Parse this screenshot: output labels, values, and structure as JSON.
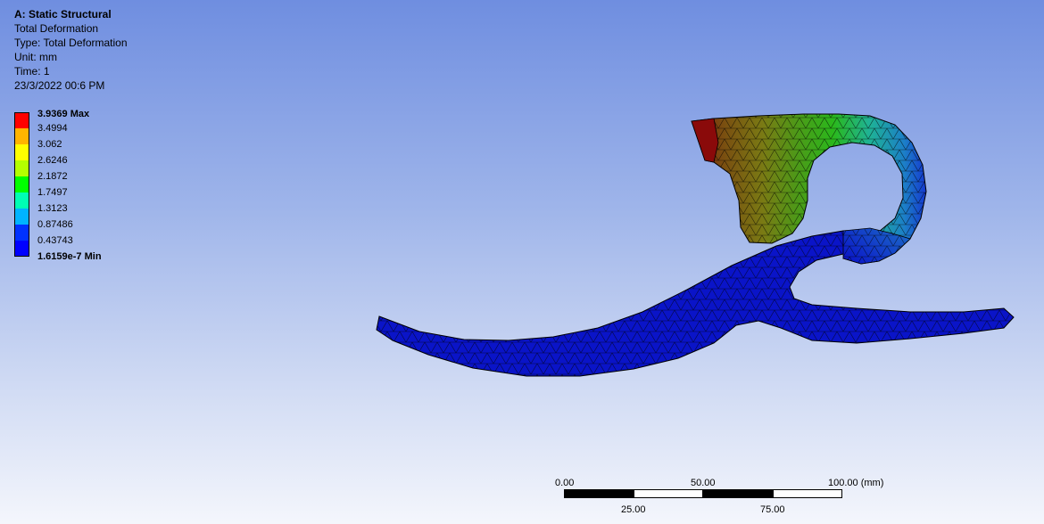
{
  "info": {
    "title": "A: Static Structural",
    "result": "Total Deformation",
    "type": "Type: Total Deformation",
    "unit": "Unit: mm",
    "time": "Time: 1",
    "date": "23/3/2022 00:6 PM"
  },
  "legend": {
    "max_label": "3.9369 Max",
    "levels": [
      "3.4994",
      "3.062",
      "2.6246",
      "2.1872",
      "1.7497",
      "1.3123",
      "0.87486",
      "0.43743"
    ],
    "min_label": "1.6159e-7 Min",
    "colors": [
      "#ff0000",
      "#ffb400",
      "#ffff00",
      "#b4ff00",
      "#00ff00",
      "#00ffb4",
      "#00b4ff",
      "#0032ff",
      "#0000ff"
    ]
  },
  "scale": {
    "top_labels": [
      "0.00",
      "50.00",
      "100.00 (mm)"
    ],
    "bottom_labels": [
      "25.00",
      "75.00"
    ]
  },
  "colors": {
    "blue": "#0a14c8",
    "red": "#7a0a0a",
    "green": "#21b81a"
  }
}
